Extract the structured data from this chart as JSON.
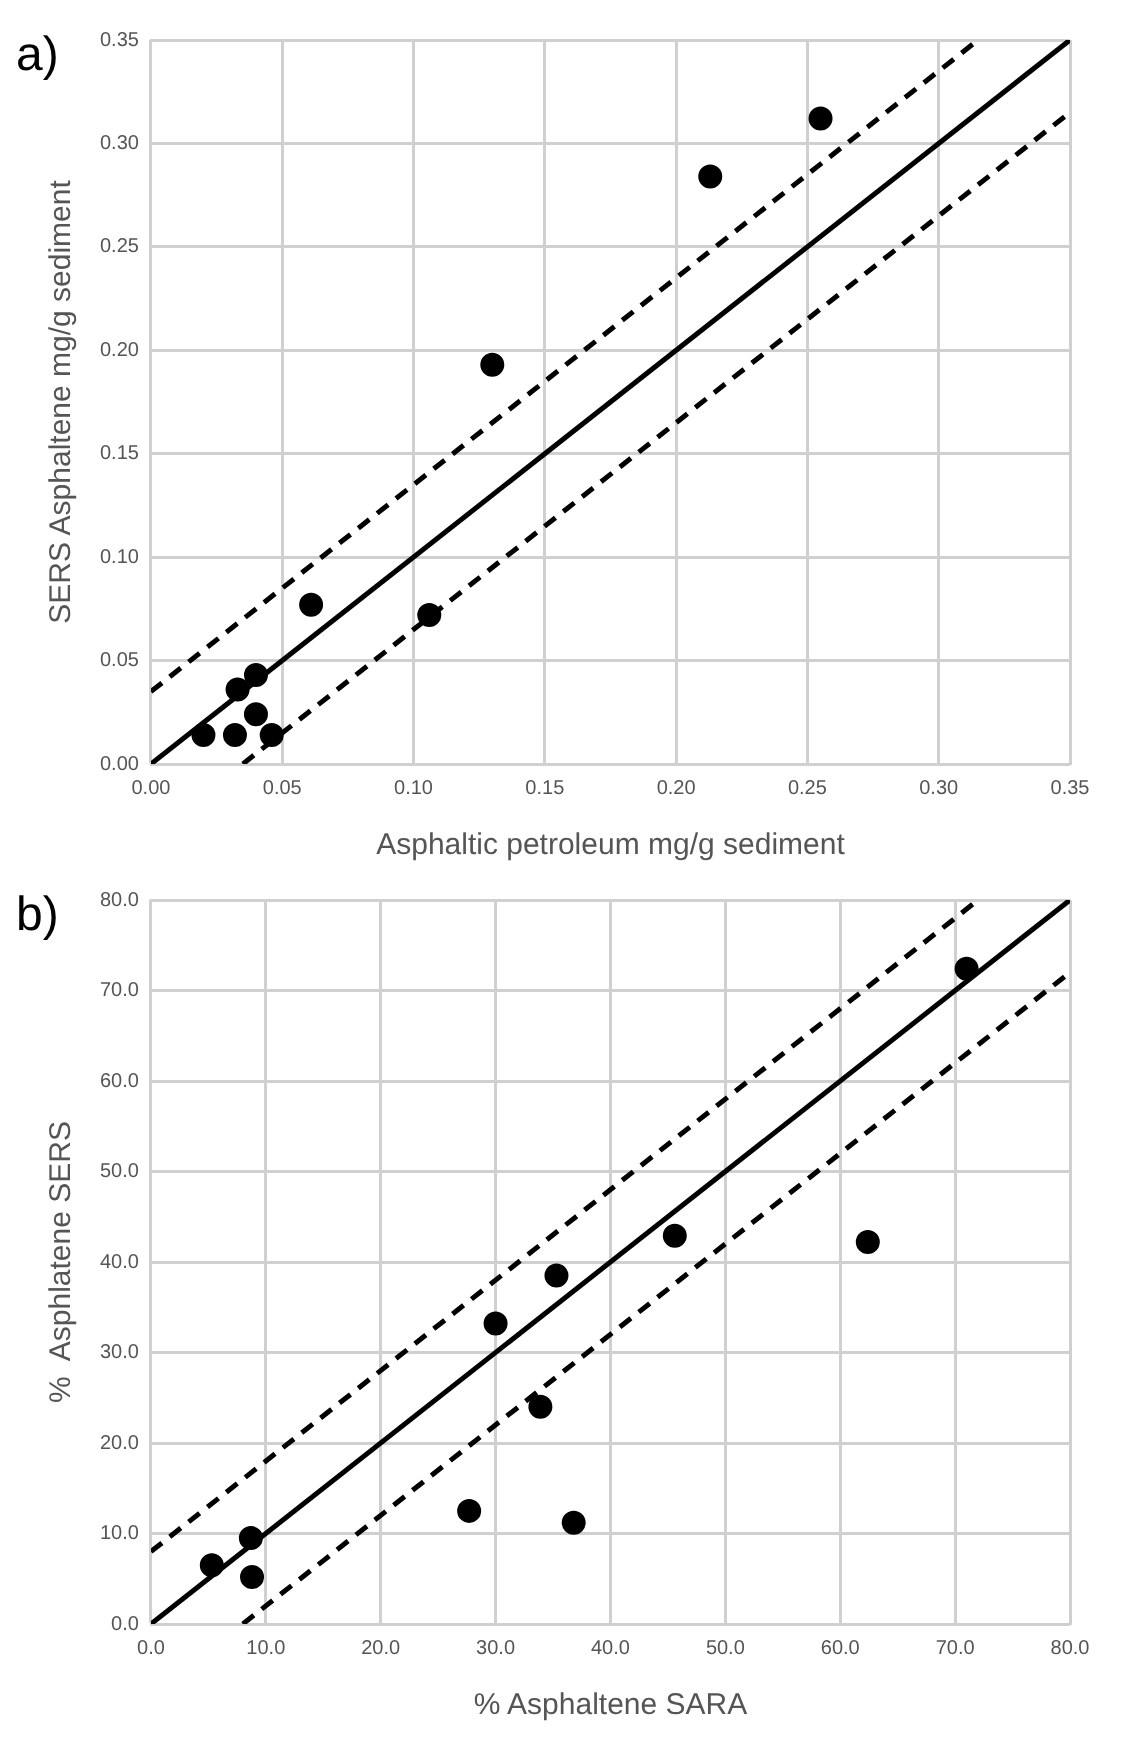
{
  "chart_data": [
    {
      "type": "scatter",
      "title": "a)",
      "xlabel": "Asphaltic petroleum mg/g sediment",
      "ylabel": "SERS Asphaltene mg/g sediment",
      "xlim": [
        0,
        0.35
      ],
      "ylim": [
        0,
        0.35
      ],
      "xticks": [
        {
          "value": 0,
          "label": "0.00"
        },
        {
          "value": 0.05,
          "label": "0.05"
        },
        {
          "value": 0.1,
          "label": "0.10"
        },
        {
          "value": 0.15,
          "label": "0.15"
        },
        {
          "value": 0.2,
          "label": "0.20"
        },
        {
          "value": 0.25,
          "label": "0.25"
        },
        {
          "value": 0.3,
          "label": "0.30"
        },
        {
          "value": 0.35,
          "label": "0.35"
        }
      ],
      "yticks": [
        {
          "value": 0,
          "label": "0.00"
        },
        {
          "value": 0.05,
          "label": "0.05"
        },
        {
          "value": 0.1,
          "label": "0.10"
        },
        {
          "value": 0.15,
          "label": "0.15"
        },
        {
          "value": 0.2,
          "label": "0.20"
        },
        {
          "value": 0.25,
          "label": "0.25"
        },
        {
          "value": 0.3,
          "label": "0.30"
        },
        {
          "value": 0.35,
          "label": "0.35"
        }
      ],
      "grid": true,
      "legend": false,
      "marker": "circle",
      "series": [
        {
          "type": "scatter",
          "color": "#000000",
          "x": [
            0.02,
            0.033,
            0.032,
            0.04,
            0.04,
            0.046,
            0.061,
            0.106,
            0.13,
            0.213,
            0.255
          ],
          "values": [
            0.014,
            0.036,
            0.014,
            0.043,
            0.024,
            0.014,
            0.077,
            0.072,
            0.193,
            0.284,
            0.312
          ]
        },
        {
          "type": "line",
          "color": "#000000",
          "line_style": "solid",
          "marker": "none",
          "x": [
            0,
            0.35
          ],
          "values": [
            0,
            0.35
          ]
        },
        {
          "type": "line",
          "color": "#000000",
          "line_style": "dashed",
          "marker": "none",
          "x": [
            0,
            0.315
          ],
          "values": [
            0.035,
            0.35
          ]
        },
        {
          "type": "line",
          "color": "#000000",
          "line_style": "dashed",
          "marker": "none",
          "x": [
            0.035,
            0.35
          ],
          "values": [
            0,
            0.315
          ]
        }
      ]
    },
    {
      "type": "scatter",
      "title": "b)",
      "xlabel": "% Asphaltene SARA",
      "ylabel": "%  Asphlatene SERS",
      "xlim": [
        0,
        80
      ],
      "ylim": [
        0,
        80
      ],
      "xticks": [
        {
          "value": 0,
          "label": "0.0"
        },
        {
          "value": 10,
          "label": "10.0"
        },
        {
          "value": 20,
          "label": "20.0"
        },
        {
          "value": 30,
          "label": "30.0"
        },
        {
          "value": 40,
          "label": "40.0"
        },
        {
          "value": 50,
          "label": "50.0"
        },
        {
          "value": 60,
          "label": "60.0"
        },
        {
          "value": 70,
          "label": "70.0"
        },
        {
          "value": 80,
          "label": "80.0"
        }
      ],
      "yticks": [
        {
          "value": 0,
          "label": "0.0"
        },
        {
          "value": 10,
          "label": "10.0"
        },
        {
          "value": 20,
          "label": "20.0"
        },
        {
          "value": 30,
          "label": "30.0"
        },
        {
          "value": 40,
          "label": "40.0"
        },
        {
          "value": 50,
          "label": "50.0"
        },
        {
          "value": 60,
          "label": "60.0"
        },
        {
          "value": 70,
          "label": "70.0"
        },
        {
          "value": 80,
          "label": "80.0"
        }
      ],
      "grid": true,
      "legend": false,
      "marker": "circle",
      "series": [
        {
          "type": "scatter",
          "color": "#000000",
          "x": [
            5.3,
            8.7,
            8.8,
            27.7,
            30.0,
            33.9,
            35.3,
            36.8,
            45.6,
            62.4,
            71.0
          ],
          "values": [
            6.5,
            9.5,
            5.2,
            12.5,
            33.2,
            24.0,
            38.5,
            11.2,
            42.9,
            42.2,
            72.4
          ]
        },
        {
          "type": "line",
          "color": "#000000",
          "line_style": "solid",
          "marker": "none",
          "x": [
            0,
            80
          ],
          "values": [
            0,
            80
          ]
        },
        {
          "type": "line",
          "color": "#000000",
          "line_style": "dashed",
          "marker": "none",
          "x": [
            0,
            72
          ],
          "values": [
            8,
            80
          ]
        },
        {
          "type": "line",
          "color": "#000000",
          "line_style": "dashed",
          "marker": "none",
          "x": [
            8,
            80
          ],
          "values": [
            0,
            72
          ]
        }
      ]
    }
  ]
}
